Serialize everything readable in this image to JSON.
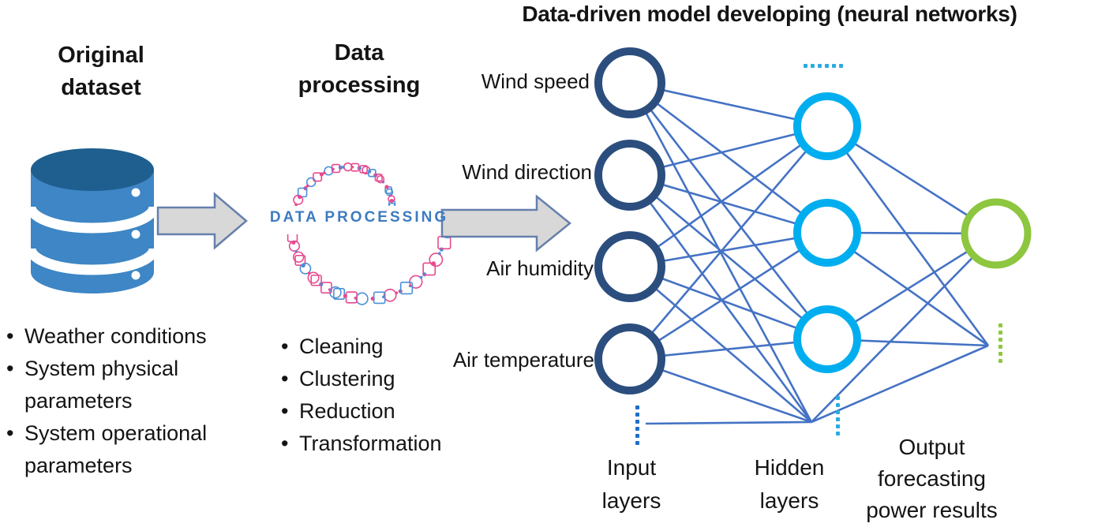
{
  "title": "Data-driven model developing (neural networks)",
  "original_dataset": {
    "heading": [
      "Original",
      "dataset"
    ],
    "bullets": [
      "Weather conditions",
      "System physical parameters",
      "System operational parameters"
    ]
  },
  "data_processing": {
    "heading": [
      "Data",
      "processing"
    ],
    "collage_text": "DATA PROCESSING",
    "bullets": [
      "Cleaning",
      "Clustering",
      "Reduction",
      "Transformation"
    ]
  },
  "network": {
    "input_labels": [
      "Wind speed",
      "Wind direction",
      "Air humidity",
      "Air temperature"
    ],
    "input_layer_label": [
      "Input",
      "layers"
    ],
    "hidden_layer_label": [
      "Hidden",
      "layers"
    ],
    "output_layer_label": [
      "Output",
      "forecasting",
      "power results"
    ]
  },
  "colors": {
    "input_node": "#2B4E7E",
    "hidden_node": "#00AEEF",
    "output_node": "#8DC63F",
    "link": "#4472C4",
    "input_dots": "#1B6ECC",
    "hidden_dots": "#29ABE2",
    "output_dots": "#8DC63F",
    "arrow_fill": "#D8D8D8",
    "arrow_stroke": "#6580AC",
    "database_top": "#1F5F8F",
    "database_body": "#3E86C5",
    "collage_pink": "#E8498F",
    "collage_blue": "#4A90D9",
    "collage_text_color": "#3D7BC0"
  }
}
